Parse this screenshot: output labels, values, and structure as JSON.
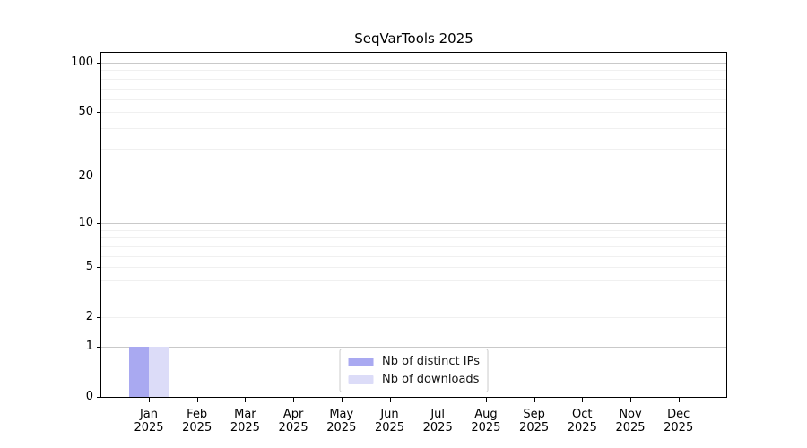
{
  "title": "SeqVarTools 2025",
  "chart_data": {
    "type": "bar",
    "title": "SeqVarTools 2025",
    "categories": [
      {
        "month": "Jan",
        "year": "2025"
      },
      {
        "month": "Feb",
        "year": "2025"
      },
      {
        "month": "Mar",
        "year": "2025"
      },
      {
        "month": "Apr",
        "year": "2025"
      },
      {
        "month": "May",
        "year": "2025"
      },
      {
        "month": "Jun",
        "year": "2025"
      },
      {
        "month": "Jul",
        "year": "2025"
      },
      {
        "month": "Aug",
        "year": "2025"
      },
      {
        "month": "Sep",
        "year": "2025"
      },
      {
        "month": "Oct",
        "year": "2025"
      },
      {
        "month": "Nov",
        "year": "2025"
      },
      {
        "month": "Dec",
        "year": "2025"
      }
    ],
    "series": [
      {
        "name": "Nb of distinct IPs",
        "color": "#a9a9f1",
        "values": [
          1,
          0,
          0,
          0,
          0,
          0,
          0,
          0,
          0,
          0,
          0,
          0
        ]
      },
      {
        "name": "Nb of downloads",
        "color": "#dcdcf8",
        "values": [
          1,
          0,
          0,
          0,
          0,
          0,
          0,
          0,
          0,
          0,
          0,
          0
        ]
      }
    ],
    "y_axis": {
      "scale": "log1p",
      "range": [
        0,
        115
      ],
      "tick_values": [
        0,
        1,
        2,
        5,
        10,
        20,
        50,
        100
      ],
      "tick_labels": [
        "0",
        "1",
        "2",
        "5",
        "10",
        "20",
        "50",
        "100"
      ],
      "major_gridlines": [
        1,
        10,
        100
      ],
      "minor_gridlines": [
        2,
        3,
        4,
        5,
        6,
        7,
        8,
        9,
        20,
        30,
        40,
        50,
        60,
        70,
        80,
        90
      ]
    },
    "legend": {
      "position": "lower center",
      "entries": [
        "Nb of distinct IPs",
        "Nb of downloads"
      ]
    },
    "grid": true,
    "background": "#ffffff"
  }
}
